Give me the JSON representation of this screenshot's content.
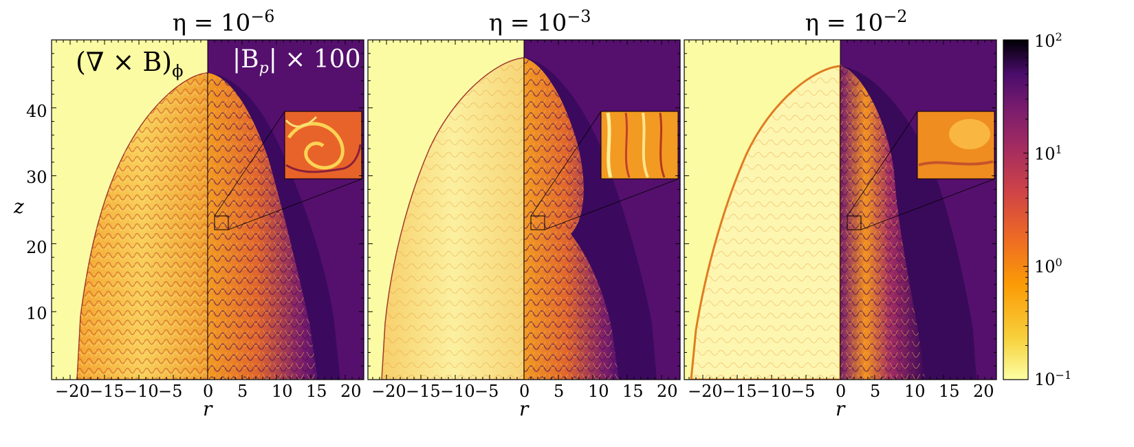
{
  "panels": [
    {
      "eta_prefix": "η = 10",
      "eta_exp": "−6"
    },
    {
      "eta_prefix": "η = 10",
      "eta_exp": "−3"
    },
    {
      "eta_prefix": "η = 10",
      "eta_exp": "−2"
    }
  ],
  "left_half_label": "(∇ × B)",
  "left_half_label_sub": "ϕ",
  "right_half_label": "|B",
  "right_half_label_sub": "p",
  "right_half_label_suffix": "| × 100",
  "x_axis_label": "r",
  "y_axis_label": "z",
  "x_ticks": [
    "−20",
    "−15",
    "−10",
    "−5",
    "0",
    "5",
    "10",
    "15",
    "20"
  ],
  "y_ticks": [
    "10",
    "20",
    "30",
    "40"
  ],
  "colorbar": {
    "ticks": [
      {
        "base": "10",
        "exp": "2"
      },
      {
        "base": "10",
        "exp": "1"
      },
      {
        "base": "10",
        "exp": "0"
      },
      {
        "base": "10",
        "exp": "−1"
      }
    ],
    "colormap": "inferno_r",
    "scale": "log",
    "range": [
      0.1,
      100
    ]
  },
  "colors": {
    "background_low": "#fbfba4",
    "background_high": "#55106d",
    "turbulence_orange": "#f28a1e",
    "turbulence_red": "#c0392b",
    "dark": "#0d0614"
  }
}
